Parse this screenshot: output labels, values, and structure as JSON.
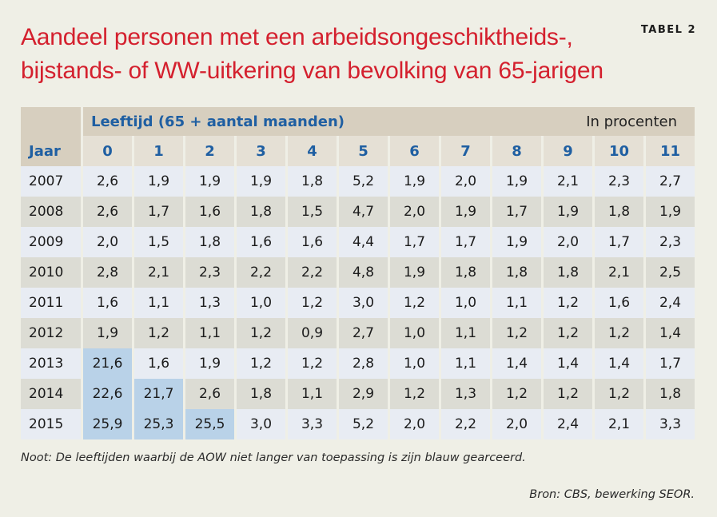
{
  "title_line1": "Aandeel personen met een arbeidsongeschiktheids-,",
  "title_line2": "bijstands- of WW-uitkering van bevolking van 65-jarigen",
  "table_label": "TABEL 2",
  "group_header": "Leeftijd (65 + aantal maanden)",
  "unit": "In procenten",
  "year_header": "Jaar",
  "columns": [
    "0",
    "1",
    "2",
    "3",
    "4",
    "5",
    "6",
    "7",
    "8",
    "9",
    "10",
    "11"
  ],
  "rows": [
    {
      "year": "2007",
      "values": [
        "2,6",
        "1,9",
        "1,9",
        "1,9",
        "1,8",
        "5,2",
        "1,9",
        "2,0",
        "1,9",
        "2,1",
        "2,3",
        "2,7"
      ]
    },
    {
      "year": "2008",
      "values": [
        "2,6",
        "1,7",
        "1,6",
        "1,8",
        "1,5",
        "4,7",
        "2,0",
        "1,9",
        "1,7",
        "1,9",
        "1,8",
        "1,9"
      ]
    },
    {
      "year": "2009",
      "values": [
        "2,0",
        "1,5",
        "1,8",
        "1,6",
        "1,6",
        "4,4",
        "1,7",
        "1,7",
        "1,9",
        "2,0",
        "1,7",
        "2,3"
      ]
    },
    {
      "year": "2010",
      "values": [
        "2,8",
        "2,1",
        "2,3",
        "2,2",
        "2,2",
        "4,8",
        "1,9",
        "1,8",
        "1,8",
        "1,8",
        "2,1",
        "2,5"
      ]
    },
    {
      "year": "2011",
      "values": [
        "1,6",
        "1,1",
        "1,3",
        "1,0",
        "1,2",
        "3,0",
        "1,2",
        "1,0",
        "1,1",
        "1,2",
        "1,6",
        "2,4"
      ]
    },
    {
      "year": "2012",
      "values": [
        "1,9",
        "1,2",
        "1,1",
        "1,2",
        "0,9",
        "2,7",
        "1,0",
        "1,1",
        "1,2",
        "1,2",
        "1,2",
        "1,4"
      ]
    },
    {
      "year": "2013",
      "values": [
        "21,6",
        "1,6",
        "1,9",
        "1,2",
        "1,2",
        "2,8",
        "1,0",
        "1,1",
        "1,4",
        "1,4",
        "1,4",
        "1,7"
      ]
    },
    {
      "year": "2014",
      "values": [
        "22,6",
        "21,7",
        "2,6",
        "1,8",
        "1,1",
        "2,9",
        "1,2",
        "1,3",
        "1,2",
        "1,2",
        "1,2",
        "1,8"
      ]
    },
    {
      "year": "2015",
      "values": [
        "25,9",
        "25,3",
        "25,5",
        "3,0",
        "3,3",
        "5,2",
        "2,0",
        "2,2",
        "2,0",
        "2,4",
        "2,1",
        "3,3"
      ]
    }
  ],
  "note": "Noot: De leeftijden waarbij de AOW niet langer van toepassing is zijn blauw gearceerd.",
  "source": "Bron: CBS, bewerking SEOR."
}
